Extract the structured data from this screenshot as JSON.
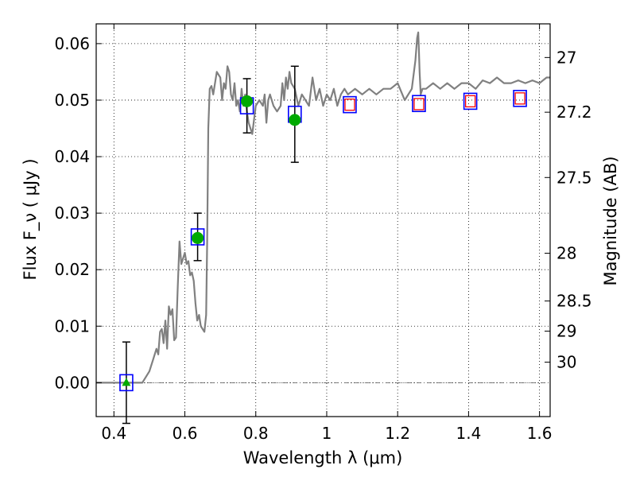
{
  "chart_data": {
    "type": "scatter",
    "title": "",
    "xlabel": "Wavelength  λ (μm)",
    "ylabel": "Flux  F_ν  ( μJy )",
    "y2label": "Magnitude (AB)",
    "xlim": [
      0.35,
      1.63
    ],
    "ylim": [
      -0.006,
      0.0635
    ],
    "grid": true,
    "x_ticks": [
      {
        "v": 0.4,
        "label": "0.4"
      },
      {
        "v": 0.6,
        "label": "0.6"
      },
      {
        "v": 0.8,
        "label": "0.8"
      },
      {
        "v": 1.0,
        "label": "1"
      },
      {
        "v": 1.2,
        "label": "1.2"
      },
      {
        "v": 1.4,
        "label": "1.4"
      },
      {
        "v": 1.6,
        "label": "1.6"
      }
    ],
    "y_ticks": [
      {
        "v": 0.0,
        "label": "0.00"
      },
      {
        "v": 0.01,
        "label": "0.01"
      },
      {
        "v": 0.02,
        "label": "0.02"
      },
      {
        "v": 0.03,
        "label": "0.03"
      },
      {
        "v": 0.04,
        "label": "0.04"
      },
      {
        "v": 0.05,
        "label": "0.05"
      },
      {
        "v": 0.06,
        "label": "0.06"
      }
    ],
    "y2_ticks": [
      {
        "mag": 27,
        "label": "27"
      },
      {
        "mag": 27.2,
        "label": "27.2"
      },
      {
        "mag": 27.5,
        "label": "27.5"
      },
      {
        "mag": 28,
        "label": "28"
      },
      {
        "mag": 28.5,
        "label": "28.5"
      },
      {
        "mag": 29,
        "label": "29"
      },
      {
        "mag": 30,
        "label": "30"
      }
    ],
    "colors": {
      "template": "#808080",
      "observed": "#0000ff",
      "model": "#ff0000",
      "green": "#00aa00",
      "errorbar": "#000000",
      "zeroline": "#555555",
      "grid": "#000000"
    },
    "template_spectrum": {
      "x": [
        0.35,
        0.4,
        0.45,
        0.48,
        0.5,
        0.51,
        0.52,
        0.525,
        0.53,
        0.535,
        0.54,
        0.545,
        0.55,
        0.555,
        0.56,
        0.565,
        0.57,
        0.575,
        0.58,
        0.585,
        0.59,
        0.595,
        0.6,
        0.605,
        0.61,
        0.615,
        0.62,
        0.625,
        0.63,
        0.635,
        0.64,
        0.645,
        0.65,
        0.655,
        0.66,
        0.663,
        0.666,
        0.67,
        0.675,
        0.68,
        0.69,
        0.7,
        0.705,
        0.71,
        0.715,
        0.72,
        0.725,
        0.73,
        0.735,
        0.74,
        0.745,
        0.75,
        0.755,
        0.76,
        0.765,
        0.77,
        0.775,
        0.78,
        0.79,
        0.8,
        0.81,
        0.82,
        0.825,
        0.83,
        0.835,
        0.84,
        0.85,
        0.86,
        0.87,
        0.875,
        0.88,
        0.885,
        0.89,
        0.895,
        0.9,
        0.91,
        0.92,
        0.93,
        0.94,
        0.95,
        0.96,
        0.97,
        0.98,
        0.99,
        1.0,
        1.01,
        1.02,
        1.03,
        1.04,
        1.05,
        1.06,
        1.08,
        1.1,
        1.12,
        1.14,
        1.16,
        1.18,
        1.2,
        1.22,
        1.24,
        1.25,
        1.255,
        1.258,
        1.26,
        1.262,
        1.265,
        1.27,
        1.28,
        1.3,
        1.32,
        1.34,
        1.36,
        1.38,
        1.4,
        1.42,
        1.44,
        1.46,
        1.48,
        1.5,
        1.52,
        1.54,
        1.56,
        1.58,
        1.6,
        1.62,
        1.63
      ],
      "y": [
        0.0,
        0.0,
        0.0,
        0.0,
        0.002,
        0.004,
        0.006,
        0.005,
        0.009,
        0.0095,
        0.007,
        0.011,
        0.006,
        0.0135,
        0.012,
        0.013,
        0.0075,
        0.008,
        0.017,
        0.025,
        0.021,
        0.022,
        0.023,
        0.021,
        0.0215,
        0.019,
        0.0195,
        0.018,
        0.014,
        0.011,
        0.012,
        0.01,
        0.0095,
        0.009,
        0.012,
        0.025,
        0.045,
        0.052,
        0.0525,
        0.051,
        0.055,
        0.054,
        0.05,
        0.053,
        0.052,
        0.056,
        0.055,
        0.051,
        0.05,
        0.053,
        0.049,
        0.05,
        0.048,
        0.052,
        0.049,
        0.051,
        0.048,
        0.046,
        0.044,
        0.049,
        0.05,
        0.049,
        0.051,
        0.046,
        0.05,
        0.051,
        0.049,
        0.048,
        0.049,
        0.053,
        0.05,
        0.054,
        0.052,
        0.055,
        0.053,
        0.052,
        0.049,
        0.051,
        0.05,
        0.049,
        0.054,
        0.05,
        0.052,
        0.049,
        0.051,
        0.05,
        0.052,
        0.049,
        0.051,
        0.052,
        0.051,
        0.052,
        0.051,
        0.052,
        0.051,
        0.052,
        0.052,
        0.053,
        0.05,
        0.052,
        0.057,
        0.061,
        0.062,
        0.059,
        0.055,
        0.051,
        0.052,
        0.052,
        0.053,
        0.052,
        0.053,
        0.052,
        0.053,
        0.053,
        0.052,
        0.0535,
        0.053,
        0.054,
        0.053,
        0.053,
        0.0535,
        0.053,
        0.0535,
        0.053,
        0.054,
        0.054
      ]
    },
    "observed": [
      {
        "x": 0.435,
        "y": 0.0,
        "err": 0.0072
      },
      {
        "x": 0.636,
        "y": 0.0258,
        "err": 0.0042
      },
      {
        "x": 0.775,
        "y": 0.049,
        "err": 0.0048
      },
      {
        "x": 0.91,
        "y": 0.0475,
        "err": 0.0085
      },
      {
        "x": 1.065,
        "y": 0.0492,
        "err": 0
      },
      {
        "x": 1.26,
        "y": 0.0494,
        "err": 0
      },
      {
        "x": 1.405,
        "y": 0.0498,
        "err": 0
      },
      {
        "x": 1.545,
        "y": 0.0503,
        "err": 0
      }
    ],
    "model": [
      {
        "x": 1.065,
        "y": 0.0492
      },
      {
        "x": 1.26,
        "y": 0.0493
      },
      {
        "x": 1.405,
        "y": 0.0498
      },
      {
        "x": 1.545,
        "y": 0.0503
      }
    ],
    "green_points": [
      {
        "x": 0.636,
        "y": 0.0256,
        "marker": "circle"
      },
      {
        "x": 0.775,
        "y": 0.0498,
        "marker": "circle"
      },
      {
        "x": 0.91,
        "y": 0.0465,
        "marker": "circle"
      },
      {
        "x": 0.435,
        "y": 0.0,
        "marker": "triangle"
      }
    ]
  }
}
